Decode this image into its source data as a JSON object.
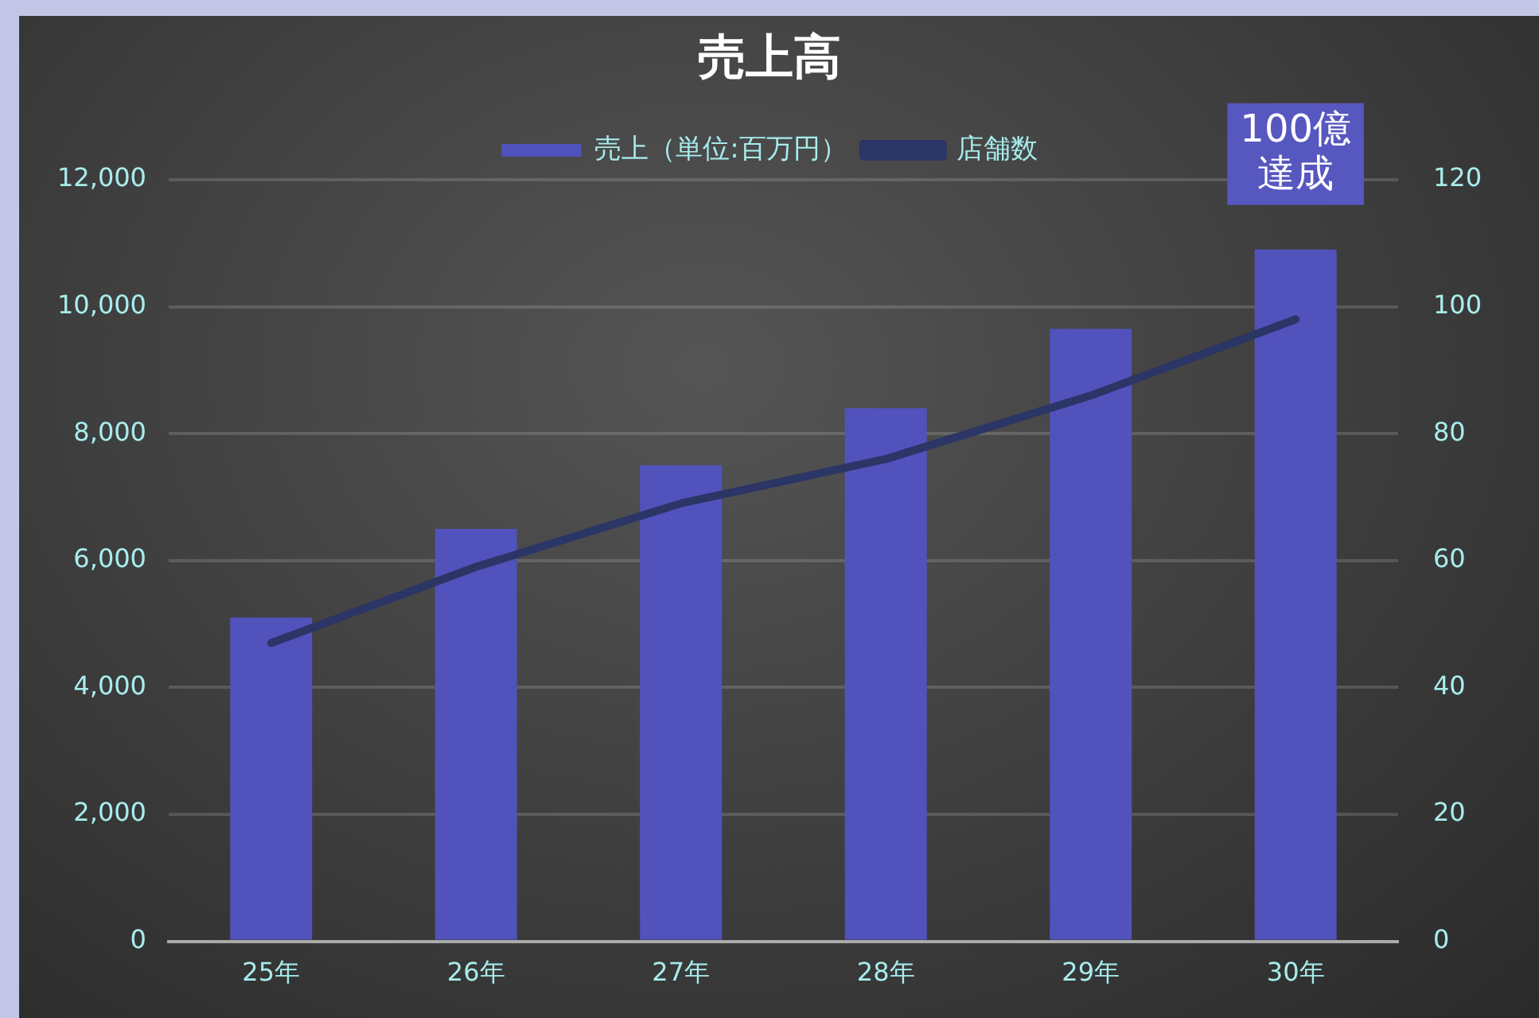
{
  "chart_data": {
    "type": "bar",
    "title": "売上高",
    "categories": [
      "25年",
      "26年",
      "27年",
      "28年",
      "29年",
      "30年"
    ],
    "series": [
      {
        "name": "売上（単位:百万円）",
        "color": "#5252bd",
        "values": [
          5100,
          6500,
          7500,
          8400,
          9650,
          10900
        ]
      },
      {
        "name": "店舗数",
        "type": "line",
        "axis": "y2",
        "color": "#2b3566",
        "values": [
          47,
          59,
          69,
          76,
          86,
          98
        ]
      }
    ],
    "ylim": [
      0,
      12000
    ],
    "yticks": [
      0,
      {
        "value": 2000,
        "label": "2,000"
      },
      {
        "value": 4000,
        "label": "4,000"
      },
      {
        "value": 6000,
        "label": "6,000"
      },
      {
        "value": 8000,
        "label": "8,000"
      },
      {
        "value": 10000,
        "label": "10,000"
      },
      {
        "value": 12000,
        "label": "12,000"
      }
    ],
    "y2lim": [
      0,
      120
    ],
    "y2ticks": [
      0,
      20,
      40,
      60,
      80,
      100,
      120
    ],
    "grid": "y",
    "legend": "top",
    "marker": "none",
    "line_style": "solid",
    "annotations": [
      {
        "text": "100億達成",
        "x": "30年",
        "y": 10900
      }
    ]
  }
}
